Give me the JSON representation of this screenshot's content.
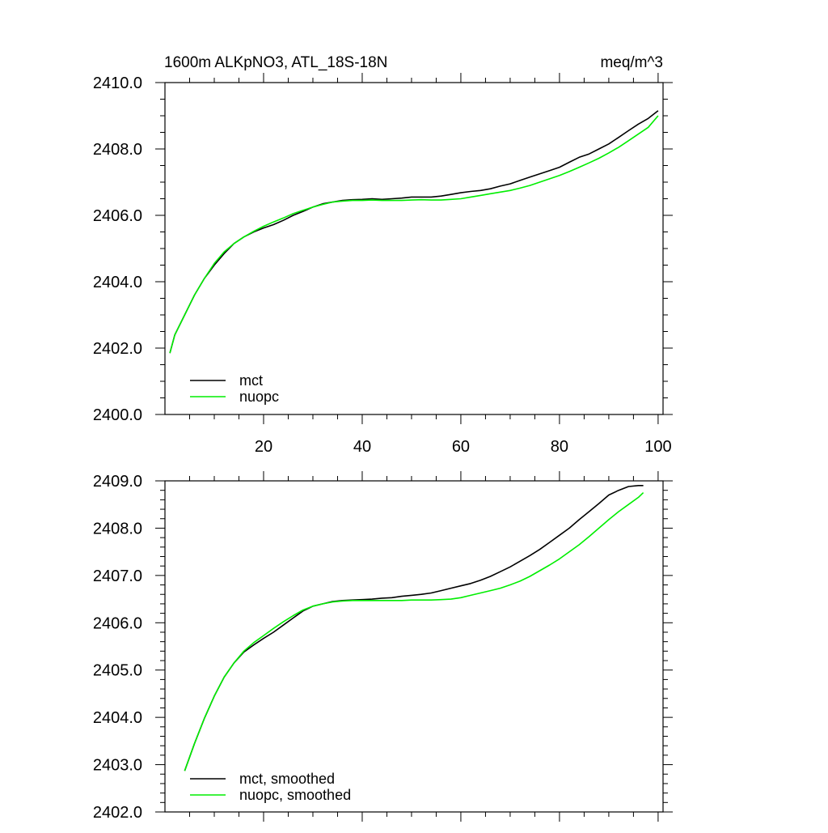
{
  "chart_data": [
    {
      "type": "line",
      "title": "1600m ALKpNO3, ATL_18S-18N",
      "units": "meq/m^3",
      "xlim": [
        0,
        101
      ],
      "ylim": [
        2400,
        2410
      ],
      "xticks": [
        20,
        40,
        60,
        80,
        100
      ],
      "xtick_labels": [
        "20",
        "40",
        "60",
        "80",
        "100"
      ],
      "yticks": [
        2400,
        2402,
        2404,
        2406,
        2408,
        2410
      ],
      "ytick_labels": [
        "2400.0",
        "2402.0",
        "2404.0",
        "2406.0",
        "2408.0",
        "2410.0"
      ],
      "legend_position": "bottom-left",
      "series": [
        {
          "name": "mct",
          "color": "#000000",
          "x": [
            1,
            2,
            4,
            6,
            8,
            10,
            12,
            14,
            16,
            18,
            20,
            22,
            24,
            26,
            28,
            30,
            32,
            34,
            36,
            38,
            40,
            42,
            44,
            46,
            48,
            50,
            52,
            54,
            56,
            58,
            60,
            62,
            64,
            66,
            68,
            70,
            72,
            74,
            76,
            78,
            80,
            82,
            84,
            86,
            88,
            90,
            92,
            94,
            96,
            98,
            100
          ],
          "y": [
            2401.85,
            2402.4,
            2403.0,
            2403.6,
            2404.1,
            2404.5,
            2404.85,
            2405.15,
            2405.35,
            2405.5,
            2405.62,
            2405.72,
            2405.85,
            2406.0,
            2406.12,
            2406.25,
            2406.35,
            2406.4,
            2406.45,
            2406.47,
            2406.48,
            2406.5,
            2406.48,
            2406.5,
            2406.52,
            2406.55,
            2406.55,
            2406.55,
            2406.58,
            2406.63,
            2406.68,
            2406.72,
            2406.75,
            2406.8,
            2406.88,
            2406.95,
            2407.05,
            2407.15,
            2407.25,
            2407.35,
            2407.45,
            2407.6,
            2407.75,
            2407.85,
            2408.0,
            2408.15,
            2408.35,
            2408.55,
            2408.75,
            2408.92,
            2409.15
          ]
        },
        {
          "name": "nuopc",
          "color": "#00ee00",
          "x": [
            1,
            2,
            4,
            6,
            8,
            10,
            12,
            14,
            16,
            18,
            20,
            22,
            24,
            26,
            28,
            30,
            32,
            34,
            36,
            38,
            40,
            42,
            44,
            46,
            48,
            50,
            52,
            54,
            56,
            58,
            60,
            62,
            64,
            66,
            68,
            70,
            72,
            74,
            76,
            78,
            80,
            82,
            84,
            86,
            88,
            90,
            92,
            94,
            96,
            98,
            100
          ],
          "y": [
            2401.85,
            2402.4,
            2403.0,
            2403.6,
            2404.1,
            2404.55,
            2404.9,
            2405.15,
            2405.35,
            2405.52,
            2405.67,
            2405.8,
            2405.92,
            2406.05,
            2406.15,
            2406.25,
            2406.33,
            2406.4,
            2406.43,
            2406.45,
            2406.45,
            2406.46,
            2406.45,
            2406.45,
            2406.45,
            2406.46,
            2406.47,
            2406.46,
            2406.46,
            2406.48,
            2406.5,
            2406.55,
            2406.6,
            2406.65,
            2406.7,
            2406.75,
            2406.82,
            2406.9,
            2407.0,
            2407.1,
            2407.2,
            2407.32,
            2407.45,
            2407.58,
            2407.72,
            2407.88,
            2408.05,
            2408.25,
            2408.45,
            2408.65,
            2409.0
          ]
        }
      ]
    },
    {
      "type": "line",
      "xlim": [
        0,
        101
      ],
      "ylim": [
        2402,
        2409
      ],
      "xticks": [
        20,
        40,
        60,
        80,
        100
      ],
      "yticks": [
        2402,
        2403,
        2404,
        2405,
        2406,
        2407,
        2408,
        2409
      ],
      "ytick_labels": [
        "2402.0",
        "2403.0",
        "2404.0",
        "2405.0",
        "2406.0",
        "2407.0",
        "2408.0",
        "2409.0"
      ],
      "legend_position": "bottom-left",
      "series": [
        {
          "name": "mct, smoothed",
          "color": "#000000",
          "x": [
            4,
            6,
            8,
            10,
            12,
            14,
            16,
            18,
            20,
            22,
            24,
            26,
            28,
            30,
            32,
            34,
            36,
            38,
            40,
            42,
            44,
            46,
            48,
            50,
            52,
            54,
            56,
            58,
            60,
            62,
            64,
            66,
            68,
            70,
            72,
            74,
            76,
            78,
            80,
            82,
            84,
            86,
            88,
            90,
            92,
            94,
            96,
            97
          ],
          "y": [
            2402.87,
            2403.45,
            2403.98,
            2404.45,
            2404.85,
            2405.15,
            2405.38,
            2405.53,
            2405.67,
            2405.8,
            2405.95,
            2406.1,
            2406.25,
            2406.35,
            2406.4,
            2406.45,
            2406.47,
            2406.48,
            2406.49,
            2406.5,
            2406.52,
            2406.53,
            2406.56,
            2406.58,
            2406.6,
            2406.63,
            2406.68,
            2406.73,
            2406.78,
            2406.83,
            2406.9,
            2406.98,
            2407.08,
            2407.18,
            2407.3,
            2407.42,
            2407.55,
            2407.7,
            2407.85,
            2408.0,
            2408.18,
            2408.35,
            2408.52,
            2408.7,
            2408.8,
            2408.88,
            2408.9,
            2408.9
          ]
        },
        {
          "name": "nuopc, smoothed",
          "color": "#00ee00",
          "x": [
            4,
            6,
            8,
            10,
            12,
            14,
            16,
            18,
            20,
            22,
            24,
            26,
            28,
            30,
            32,
            34,
            36,
            38,
            40,
            42,
            44,
            46,
            48,
            50,
            52,
            54,
            56,
            58,
            60,
            62,
            64,
            66,
            68,
            70,
            72,
            74,
            76,
            78,
            80,
            82,
            84,
            86,
            88,
            90,
            92,
            94,
            96,
            97
          ],
          "y": [
            2402.87,
            2403.45,
            2403.98,
            2404.45,
            2404.85,
            2405.15,
            2405.4,
            2405.58,
            2405.73,
            2405.88,
            2406.02,
            2406.15,
            2406.27,
            2406.35,
            2406.4,
            2406.44,
            2406.46,
            2406.47,
            2406.47,
            2406.47,
            2406.47,
            2406.47,
            2406.47,
            2406.48,
            2406.48,
            2406.48,
            2406.49,
            2406.5,
            2406.53,
            2406.58,
            2406.63,
            2406.68,
            2406.73,
            2406.8,
            2406.88,
            2406.98,
            2407.1,
            2407.22,
            2407.35,
            2407.5,
            2407.65,
            2407.82,
            2408.0,
            2408.18,
            2408.35,
            2408.5,
            2408.65,
            2408.75
          ]
        }
      ]
    }
  ]
}
